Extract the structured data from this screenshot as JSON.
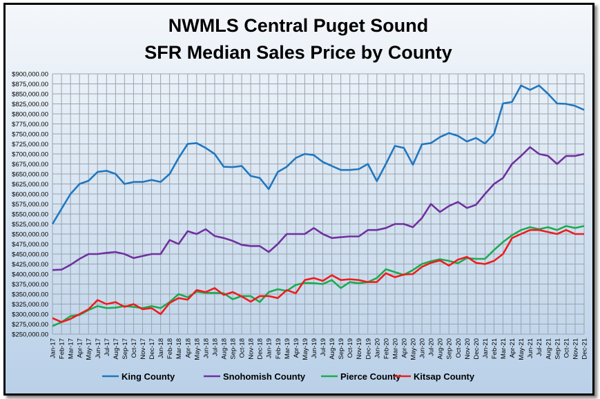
{
  "chart_data": {
    "type": "line",
    "title": "NWMLS Central Puget Sound",
    "subtitle": "SFR Median Sales Price by County",
    "xlabel": "",
    "ylabel": "",
    "ylim": [
      250000,
      900000
    ],
    "ytick_step": 25000,
    "grid": true,
    "legend_placement": "bottom",
    "categories": [
      "Jan-17",
      "Feb-17",
      "Mar-17",
      "Apr-17",
      "May-17",
      "Jun-17",
      "Jul-17",
      "Aug-17",
      "Sep-17",
      "Oct-17",
      "Nov-17",
      "Dec-17",
      "Jan-18",
      "Feb-18",
      "Mar-18",
      "Apr-18",
      "May-18",
      "Jun-18",
      "Jul-18",
      "Aug-18",
      "Sep-18",
      "Oct-18",
      "Nov-18",
      "Dec-18",
      "Jan-19",
      "Feb-19",
      "Mar-19",
      "Apr-19",
      "May-19",
      "Jun-19",
      "Jul-19",
      "Aug-19",
      "Sep-19",
      "Oct-19",
      "Nov-19",
      "Dec-19",
      "Jan-20",
      "Feb-20",
      "Mar-20",
      "Apr-20",
      "May-20",
      "Jun-20",
      "Jul-20",
      "Aug-20",
      "Sep-20",
      "Oct-20",
      "Nov-20",
      "Dec-20",
      "Jan-21",
      "Feb-21",
      "Mar-21",
      "Apr-21",
      "May-21",
      "Jun-21",
      "Jul-21",
      "Aug-21",
      "Sep-21",
      "Oct-21",
      "Nov-21",
      "Dec-21"
    ],
    "series": [
      {
        "name": "King County",
        "color": "#1f77c0",
        "values": [
          525000,
          563000,
          600000,
          625000,
          633000,
          655000,
          658000,
          650000,
          625000,
          630000,
          630000,
          635000,
          630000,
          650000,
          690000,
          725000,
          727000,
          715000,
          700000,
          668000,
          667000,
          670000,
          645000,
          640000,
          612000,
          655000,
          668000,
          690000,
          700000,
          697000,
          680000,
          670000,
          660000,
          660000,
          662000,
          675000,
          632000,
          675000,
          720000,
          715000,
          673000,
          724000,
          727000,
          742000,
          752000,
          745000,
          731000,
          740000,
          726000,
          750000,
          826000,
          830000,
          871000,
          860000,
          871000,
          850000,
          826000,
          825000,
          820000,
          810000
        ]
      },
      {
        "name": "Snohomish County",
        "color": "#7030a0",
        "values": [
          410000,
          411000,
          423000,
          438000,
          450000,
          450000,
          453000,
          455000,
          450000,
          440000,
          445000,
          450000,
          450000,
          485000,
          475000,
          507000,
          500000,
          512000,
          495000,
          490000,
          483000,
          473000,
          470000,
          470000,
          455000,
          475000,
          500000,
          500000,
          500000,
          515000,
          500000,
          490000,
          492000,
          494000,
          494000,
          510000,
          510000,
          515000,
          525000,
          525000,
          517000,
          540000,
          575000,
          555000,
          570000,
          580000,
          565000,
          573000,
          600000,
          625000,
          640000,
          675000,
          695000,
          717000,
          700000,
          695000,
          675000,
          695000,
          695000,
          700000
        ]
      },
      {
        "name": "Pierce County",
        "color": "#1daa50",
        "values": [
          270000,
          280000,
          295000,
          298000,
          310000,
          320000,
          315000,
          316000,
          320000,
          318000,
          315000,
          320000,
          315000,
          330000,
          350000,
          342000,
          356000,
          353000,
          353000,
          352000,
          337000,
          345000,
          345000,
          330000,
          355000,
          362000,
          358000,
          373000,
          378000,
          377000,
          375000,
          385000,
          365000,
          380000,
          377000,
          380000,
          390000,
          412000,
          405000,
          398000,
          410000,
          425000,
          432000,
          437000,
          433000,
          427000,
          440000,
          438000,
          438000,
          460000,
          480000,
          497000,
          510000,
          517000,
          512000,
          517000,
          510000,
          520000,
          515000,
          520000
        ]
      },
      {
        "name": "Kitsap County",
        "color": "#ee1c1c",
        "values": [
          290000,
          280000,
          288000,
          300000,
          312000,
          335000,
          325000,
          330000,
          318000,
          325000,
          312000,
          315000,
          300000,
          328000,
          340000,
          336000,
          360000,
          355000,
          365000,
          348000,
          355000,
          344000,
          331000,
          345000,
          345000,
          340000,
          360000,
          352000,
          385000,
          390000,
          383000,
          397000,
          385000,
          387000,
          385000,
          380000,
          380000,
          402000,
          392000,
          399000,
          400000,
          418000,
          428000,
          434000,
          421000,
          436000,
          443000,
          428000,
          425000,
          433000,
          450000,
          490000,
          500000,
          510000,
          510000,
          505000,
          500000,
          510000,
          500000,
          500000
        ]
      }
    ]
  }
}
